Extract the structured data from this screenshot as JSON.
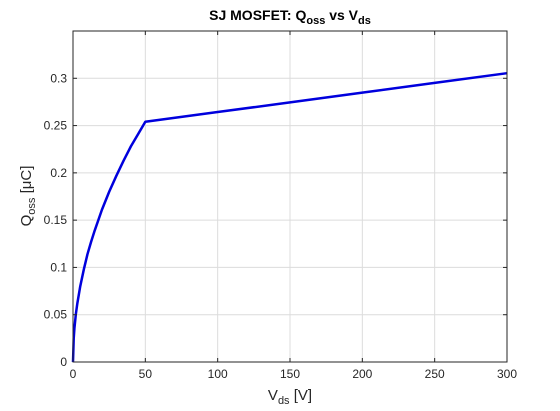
{
  "chart_data": {
    "type": "line",
    "title": {
      "main": "SJ MOSFET: Q",
      "sub1": "oss",
      "mid": " vs V",
      "sub2": "ds"
    },
    "xlabel": {
      "main": "V",
      "sub": "ds",
      "unit": " [V]"
    },
    "ylabel": {
      "main": "Q",
      "sub": "oss",
      "unit": " [μC]"
    },
    "xlim": [
      0,
      300
    ],
    "ylim": [
      0,
      0.35
    ],
    "xticks": [
      0,
      50,
      100,
      150,
      200,
      250,
      300
    ],
    "xtick_labels": [
      "0",
      "50",
      "100",
      "150",
      "200",
      "250",
      "300"
    ],
    "yticks": [
      0,
      0.05,
      0.1,
      0.15,
      0.2,
      0.25,
      0.3
    ],
    "ytick_labels": [
      "0",
      "0.05",
      "0.1",
      "0.15",
      "0.2",
      "0.25",
      "0.3"
    ],
    "grid": true,
    "line_color": "#0000dd",
    "series": [
      {
        "x": [
          0,
          0.5,
          1,
          2,
          3,
          5,
          7.5,
          10,
          12.5,
          15,
          20,
          25,
          30,
          35,
          40,
          45,
          50,
          100,
          150,
          200,
          250,
          300
        ],
        "y": [
          0,
          0.025,
          0.036,
          0.051,
          0.062,
          0.08,
          0.098,
          0.114,
          0.127,
          0.139,
          0.161,
          0.18,
          0.197,
          0.213,
          0.228,
          0.241,
          0.254,
          0.2643,
          0.2745,
          0.2848,
          0.2951,
          0.3054
        ]
      }
    ]
  }
}
